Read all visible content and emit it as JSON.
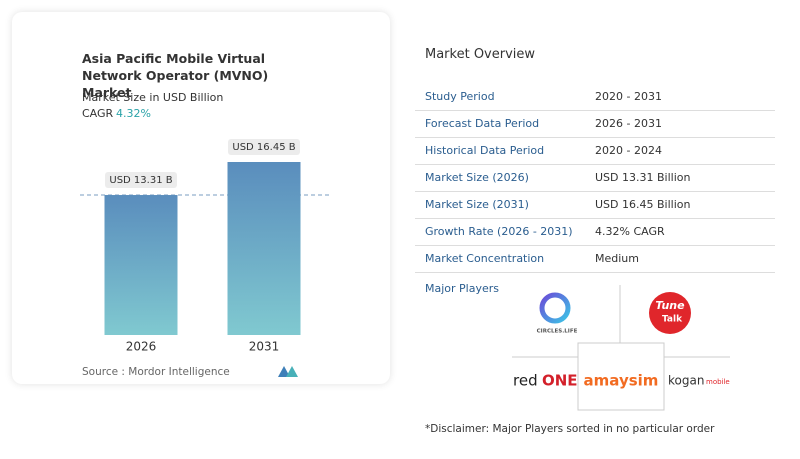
{
  "chart_data": {
    "type": "bar",
    "title": "Asia Pacific Mobile Virtual Network Operator (MVNO) Market",
    "subtitle": "Market Size in USD Billion",
    "cagr_label": "CAGR",
    "cagr_value": "4.32%",
    "categories": [
      "2026",
      "2031"
    ],
    "values": [
      13.31,
      16.45
    ],
    "value_labels": [
      "USD 13.31 B",
      "USD 16.45 B"
    ],
    "source": "Source : Mordor Intelligence"
  },
  "overview": {
    "title": "Market Overview",
    "rows": [
      [
        "Study Period",
        "2020 - 2031"
      ],
      [
        "Forecast Data Period",
        "2026 - 2031"
      ],
      [
        "Historical Data Period",
        "2020 - 2024"
      ],
      [
        "Market Size (2026)",
        "USD 13.31 Billion"
      ],
      [
        "Market Size (2031)",
        "USD 16.45 Billion"
      ],
      [
        "Growth Rate (2026 - 2031)",
        "4.32% CAGR"
      ],
      [
        "Market Concentration",
        "Medium"
      ]
    ]
  },
  "players": {
    "title": "Major Players",
    "logos": [
      [
        "CIRCLES.LIFE"
      ],
      [
        "Tune",
        "Talk"
      ],
      [
        "red",
        "ONE"
      ],
      [
        "amaysim"
      ],
      [
        "kogan",
        "mobile"
      ]
    ]
  },
  "disclaimer": "*Disclaimer: Major Players sorted in no particular order"
}
